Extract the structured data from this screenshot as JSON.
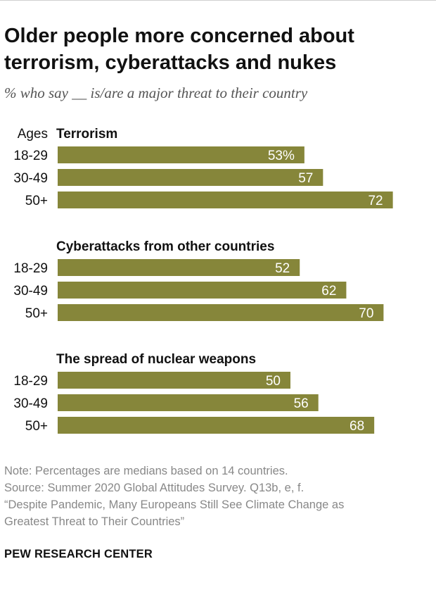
{
  "title_lines": [
    "Older people more concerned about",
    "terrorism, cyberattacks and nukes"
  ],
  "subtitle": "% who say __ is/are a major threat to their country",
  "bar_color": "#86863a",
  "chart_data": {
    "type": "bar",
    "orientation": "horizontal",
    "xlim": [
      0,
      100
    ],
    "age_header": "Ages",
    "groups": [
      {
        "name": "Terrorism",
        "categories": [
          "18-29",
          "30-49",
          "50+"
        ],
        "values": [
          53,
          57,
          72
        ],
        "labels": [
          "53%",
          "57",
          "72"
        ]
      },
      {
        "name": "Cyberattacks from other countries",
        "categories": [
          "18-29",
          "30-49",
          "50+"
        ],
        "values": [
          52,
          62,
          70
        ],
        "labels": [
          "52",
          "62",
          "70"
        ]
      },
      {
        "name": "The spread of nuclear weapons",
        "categories": [
          "18-29",
          "30-49",
          "50+"
        ],
        "values": [
          50,
          56,
          68
        ],
        "labels": [
          "50",
          "56",
          "68"
        ]
      }
    ]
  },
  "notes": {
    "note": "Note: Percentages are medians based on 14 countries.",
    "source": "Source: Summer 2020 Global Attitudes Survey. Q13b, e, f.",
    "report_line1": "“Despite Pandemic, Many Europeans Still See Climate Change as",
    "report_line2": "Greatest Threat to Their Countries”"
  },
  "brand": "PEW RESEARCH CENTER"
}
